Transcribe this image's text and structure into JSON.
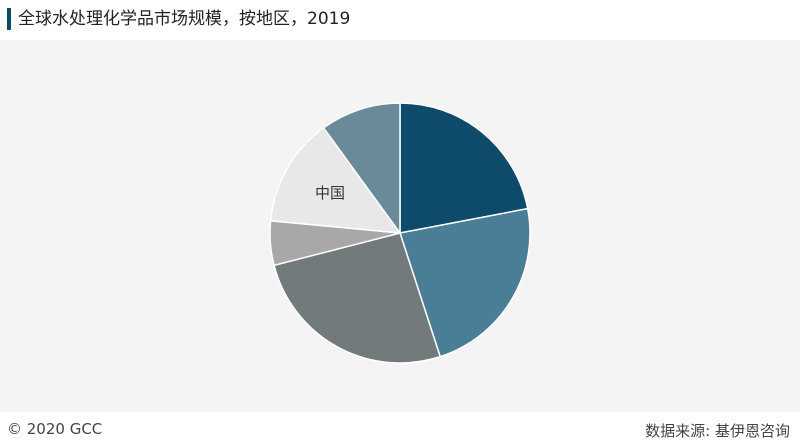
{
  "header": {
    "title": "全球水处理化学品市场规模，按地区，2019"
  },
  "footer": {
    "copyright": "© 2020 GCC",
    "source": "数据来源: 基伊恩咨询"
  },
  "chart_data": {
    "type": "pie",
    "title": "全球水处理化学品市场规模，按地区，2019",
    "start_angle_deg": 0,
    "direction": "clockwise",
    "slices": [
      {
        "label": "",
        "value": 22.0,
        "color": "#0e4a6a"
      },
      {
        "label": "",
        "value": 23.0,
        "color": "#4a7d96"
      },
      {
        "label": "",
        "value": 26.0,
        "color": "#737a7c"
      },
      {
        "label": "",
        "value": 5.5,
        "color": "#a8a8a8"
      },
      {
        "label": "中国",
        "value": 13.5,
        "color": "#e8e8e8"
      },
      {
        "label": "",
        "value": 10.0,
        "color": "#6b8a99"
      }
    ]
  }
}
